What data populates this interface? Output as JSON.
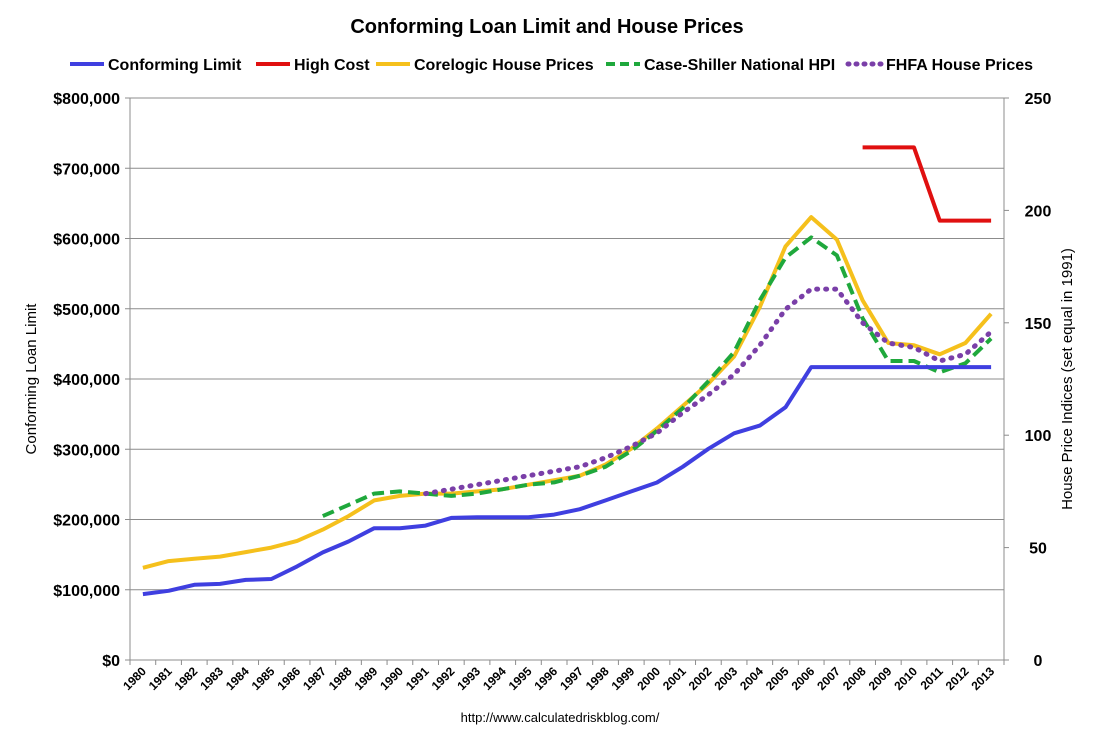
{
  "chart_data": {
    "type": "line",
    "title": "Conforming Loan Limit and House Prices",
    "ylabel_left": "Conforming Loan Limit",
    "ylabel_right": "House Price Indices (set equal in 1991)",
    "source": "http://www.calculatedriskblog.com/",
    "grid": true,
    "legend_position": "top",
    "x": [
      "1980",
      "1981",
      "1982",
      "1983",
      "1984",
      "1985",
      "1986",
      "1987",
      "1988",
      "1989",
      "1990",
      "1991",
      "1992",
      "1993",
      "1994",
      "1995",
      "1996",
      "1997",
      "1998",
      "1999",
      "2000",
      "2001",
      "2002",
      "2003",
      "2004",
      "2005",
      "2006",
      "2007",
      "2008",
      "2009",
      "2010",
      "2011",
      "2012",
      "2013"
    ],
    "y_left": {
      "min": 0,
      "max": 800000,
      "step": 100000,
      "tick_labels": [
        "$0",
        "$100,000",
        "$200,000",
        "$300,000",
        "$400,000",
        "$500,000",
        "$600,000",
        "$700,000",
        "$800,000"
      ]
    },
    "y_right": {
      "min": 0,
      "max": 250,
      "step": 50,
      "tick_labels": [
        "0",
        "50",
        "100",
        "150",
        "200",
        "250"
      ]
    },
    "series": [
      {
        "name": "Conforming Limit",
        "axis": "left",
        "color": "#3f3fe0",
        "style": "solid",
        "values": [
          93750,
          98500,
          107000,
          108300,
          114000,
          115300,
          133250,
          153100,
          168700,
          187600,
          187450,
          191250,
          202300,
          203150,
          203150,
          203150,
          207000,
          214600,
          227150,
          240000,
          252700,
          275000,
          300700,
          322700,
          333700,
          359650,
          417000,
          417000,
          417000,
          417000,
          417000,
          417000,
          417000,
          417000
        ]
      },
      {
        "name": "High Cost",
        "axis": "left",
        "color": "#e01010",
        "style": "solid",
        "values": [
          null,
          null,
          null,
          null,
          null,
          null,
          null,
          null,
          null,
          null,
          null,
          null,
          null,
          null,
          null,
          null,
          null,
          null,
          null,
          null,
          null,
          null,
          null,
          null,
          null,
          null,
          null,
          null,
          729750,
          729750,
          729750,
          625500,
          625500,
          625500
        ]
      },
      {
        "name": "Corelogic House Prices",
        "axis": "right",
        "color": "#f5c01c",
        "style": "solid",
        "values": [
          41,
          44,
          45,
          46,
          48,
          50,
          53,
          58,
          64,
          71,
          73,
          74,
          74,
          75,
          76,
          78,
          80,
          82,
          87,
          94,
          103,
          113,
          123,
          135,
          157,
          184,
          197,
          187,
          160,
          141,
          140,
          136,
          141,
          154
        ]
      },
      {
        "name": "Case-Shiller National HPI",
        "axis": "right",
        "color": "#1fa83c",
        "style": "dashed",
        "values": [
          null,
          null,
          null,
          null,
          null,
          null,
          null,
          64,
          69,
          74,
          75,
          74,
          73,
          74,
          76,
          78,
          79,
          82,
          86,
          93,
          102,
          112,
          124,
          137,
          160,
          179,
          188,
          180,
          152,
          133,
          133,
          128,
          132,
          143
        ]
      },
      {
        "name": "FHFA House Prices",
        "axis": "right",
        "color": "#7a3fa8",
        "style": "dotted",
        "values": [
          null,
          null,
          null,
          null,
          null,
          null,
          null,
          null,
          null,
          null,
          null,
          74,
          76,
          78,
          80,
          82,
          84,
          86,
          90,
          95,
          101,
          110,
          118,
          127,
          140,
          156,
          165,
          165,
          150,
          141,
          139,
          133,
          136,
          146
        ]
      }
    ]
  }
}
